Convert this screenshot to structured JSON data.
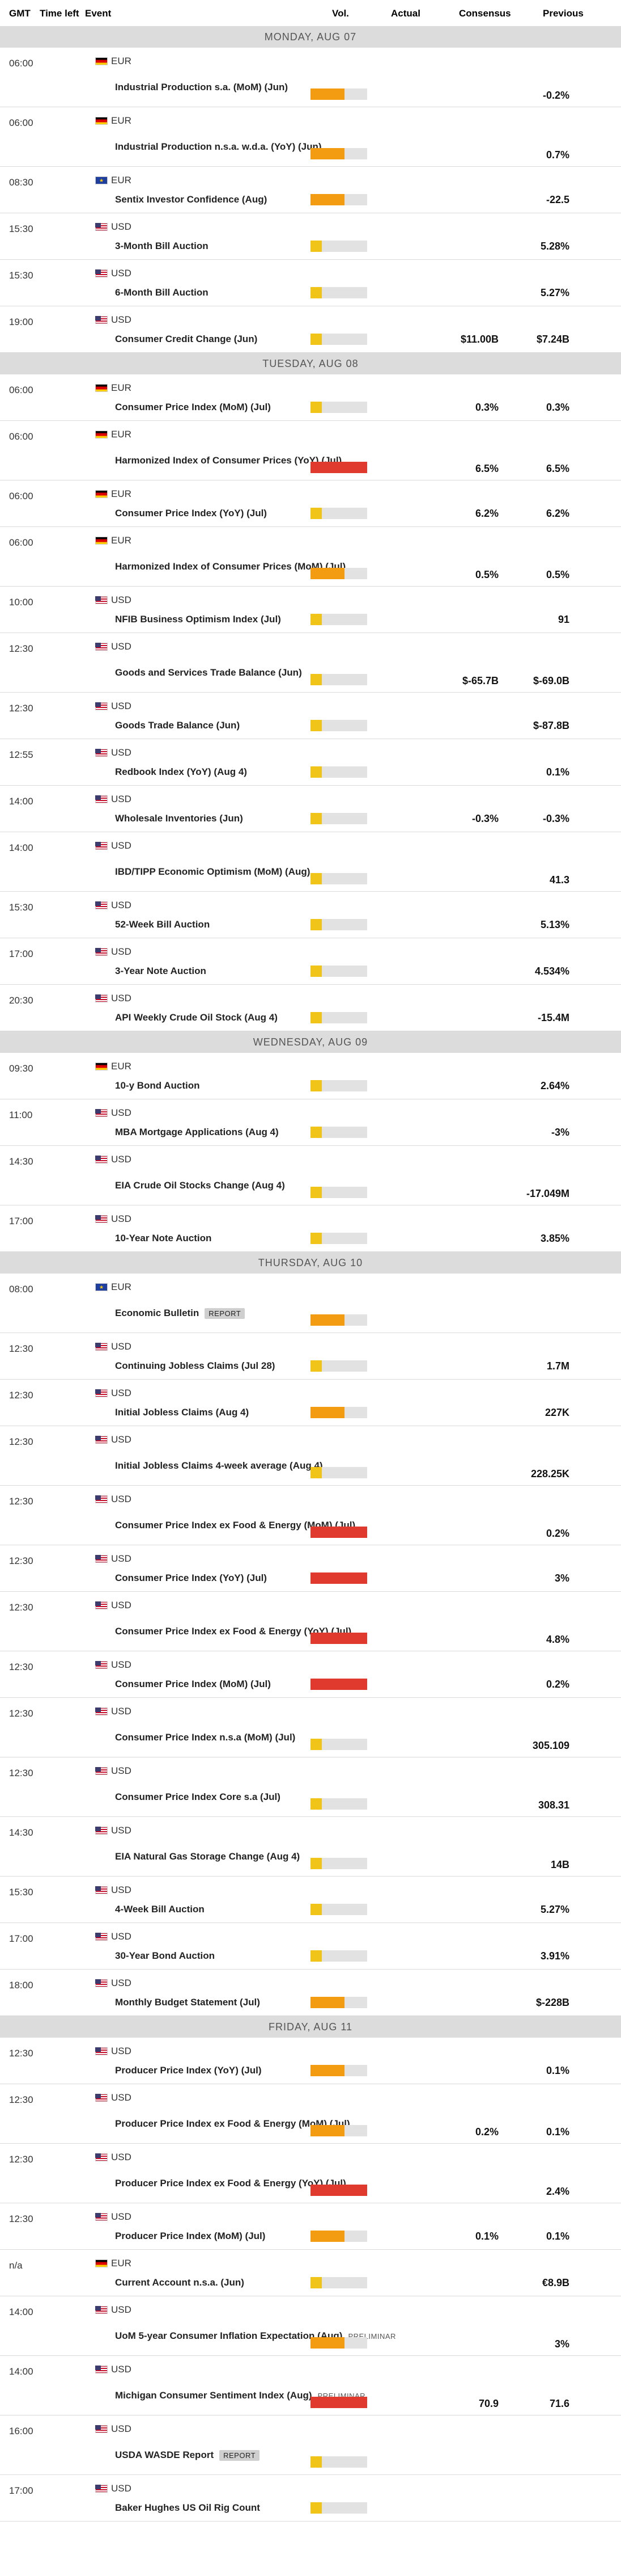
{
  "header": {
    "gmt": "GMT",
    "time_left": "Time left",
    "event": "Event",
    "vol": "Vol.",
    "actual": "Actual",
    "consensus": "Consensus",
    "previous": "Previous"
  },
  "colors": {
    "low": "#f0c419",
    "medium": "#f39c12",
    "high": "#e03a2f"
  },
  "days": [
    {
      "label": "MONDAY, AUG 07",
      "events": [
        {
          "time": "06:00",
          "currency": "EUR",
          "flag": "de",
          "name": "Industrial Production s.a. (MoM) (Jun)",
          "impact": "medium",
          "consensus": "",
          "previous": "-0.2%"
        },
        {
          "time": "06:00",
          "currency": "EUR",
          "flag": "de",
          "name": "Industrial Production n.s.a. w.d.a. (YoY) (Jun)",
          "impact": "medium",
          "consensus": "",
          "previous": "0.7%"
        },
        {
          "time": "08:30",
          "currency": "EUR",
          "flag": "eu",
          "name": "Sentix Investor Confidence (Aug)",
          "impact": "medium",
          "consensus": "",
          "previous": "-22.5"
        },
        {
          "time": "15:30",
          "currency": "USD",
          "flag": "us",
          "name": "3-Month Bill Auction",
          "impact": "low",
          "consensus": "",
          "previous": "5.28%"
        },
        {
          "time": "15:30",
          "currency": "USD",
          "flag": "us",
          "name": "6-Month Bill Auction",
          "impact": "low",
          "consensus": "",
          "previous": "5.27%"
        },
        {
          "time": "19:00",
          "currency": "USD",
          "flag": "us",
          "name": "Consumer Credit Change (Jun)",
          "impact": "low",
          "consensus": "$11.00B",
          "previous": "$7.24B"
        }
      ]
    },
    {
      "label": "TUESDAY, AUG 08",
      "events": [
        {
          "time": "06:00",
          "currency": "EUR",
          "flag": "de",
          "name": "Consumer Price Index (MoM) (Jul)",
          "impact": "low",
          "consensus": "0.3%",
          "previous": "0.3%"
        },
        {
          "time": "06:00",
          "currency": "EUR",
          "flag": "de",
          "name": "Harmonized Index of Consumer Prices (YoY) (Jul)",
          "impact": "high",
          "consensus": "6.5%",
          "previous": "6.5%"
        },
        {
          "time": "06:00",
          "currency": "EUR",
          "flag": "de",
          "name": "Consumer Price Index (YoY) (Jul)",
          "impact": "low",
          "consensus": "6.2%",
          "previous": "6.2%"
        },
        {
          "time": "06:00",
          "currency": "EUR",
          "flag": "de",
          "name": "Harmonized Index of Consumer Prices (MoM) (Jul)",
          "impact": "medium",
          "consensus": "0.5%",
          "previous": "0.5%"
        },
        {
          "time": "10:00",
          "currency": "USD",
          "flag": "us",
          "name": "NFIB Business Optimism Index (Jul)",
          "impact": "low",
          "consensus": "",
          "previous": "91"
        },
        {
          "time": "12:30",
          "currency": "USD",
          "flag": "us",
          "name": "Goods and Services Trade Balance (Jun)",
          "impact": "low",
          "consensus": "$-65.7B",
          "previous": "$-69.0B"
        },
        {
          "time": "12:30",
          "currency": "USD",
          "flag": "us",
          "name": "Goods Trade Balance (Jun)",
          "impact": "low",
          "consensus": "",
          "previous": "$-87.8B"
        },
        {
          "time": "12:55",
          "currency": "USD",
          "flag": "us",
          "name": "Redbook Index (YoY) (Aug 4)",
          "impact": "low",
          "consensus": "",
          "previous": "0.1%"
        },
        {
          "time": "14:00",
          "currency": "USD",
          "flag": "us",
          "name": "Wholesale Inventories (Jun)",
          "impact": "low",
          "consensus": "-0.3%",
          "previous": "-0.3%"
        },
        {
          "time": "14:00",
          "currency": "USD",
          "flag": "us",
          "name": "IBD/TIPP Economic Optimism (MoM) (Aug)",
          "impact": "low",
          "consensus": "",
          "previous": "41.3"
        },
        {
          "time": "15:30",
          "currency": "USD",
          "flag": "us",
          "name": "52-Week Bill Auction",
          "impact": "low",
          "consensus": "",
          "previous": "5.13%"
        },
        {
          "time": "17:00",
          "currency": "USD",
          "flag": "us",
          "name": "3-Year Note Auction",
          "impact": "low",
          "consensus": "",
          "previous": "4.534%"
        },
        {
          "time": "20:30",
          "currency": "USD",
          "flag": "us",
          "name": "API Weekly Crude Oil Stock (Aug 4)",
          "impact": "low",
          "consensus": "",
          "previous": "-15.4M"
        }
      ]
    },
    {
      "label": "WEDNESDAY, AUG 09",
      "events": [
        {
          "time": "09:30",
          "currency": "EUR",
          "flag": "de",
          "name": "10-y Bond Auction",
          "impact": "low",
          "consensus": "",
          "previous": "2.64%"
        },
        {
          "time": "11:00",
          "currency": "USD",
          "flag": "us",
          "name": "MBA Mortgage Applications (Aug 4)",
          "impact": "low",
          "consensus": "",
          "previous": "-3%"
        },
        {
          "time": "14:30",
          "currency": "USD",
          "flag": "us",
          "name": "EIA Crude Oil Stocks Change (Aug 4)",
          "impact": "low",
          "consensus": "",
          "previous": "-17.049M"
        },
        {
          "time": "17:00",
          "currency": "USD",
          "flag": "us",
          "name": "10-Year Note Auction",
          "impact": "low",
          "consensus": "",
          "previous": "3.85%"
        }
      ]
    },
    {
      "label": "THURSDAY, AUG 10",
      "events": [
        {
          "time": "08:00",
          "currency": "EUR",
          "flag": "eu",
          "name": "Economic Bulletin",
          "tag": "REPORT",
          "impact": "medium",
          "consensus": "",
          "previous": ""
        },
        {
          "time": "12:30",
          "currency": "USD",
          "flag": "us",
          "name": "Continuing Jobless Claims (Jul 28)",
          "impact": "low",
          "consensus": "",
          "previous": "1.7M"
        },
        {
          "time": "12:30",
          "currency": "USD",
          "flag": "us",
          "name": "Initial Jobless Claims (Aug 4)",
          "impact": "medium",
          "consensus": "",
          "previous": "227K"
        },
        {
          "time": "12:30",
          "currency": "USD",
          "flag": "us",
          "name": "Initial Jobless Claims 4-week average (Aug 4)",
          "impact": "low",
          "consensus": "",
          "previous": "228.25K"
        },
        {
          "time": "12:30",
          "currency": "USD",
          "flag": "us",
          "name": "Consumer Price Index ex Food & Energy (MoM) (Jul)",
          "impact": "high",
          "consensus": "",
          "previous": "0.2%"
        },
        {
          "time": "12:30",
          "currency": "USD",
          "flag": "us",
          "name": "Consumer Price Index (YoY) (Jul)",
          "impact": "high",
          "consensus": "",
          "previous": "3%"
        },
        {
          "time": "12:30",
          "currency": "USD",
          "flag": "us",
          "name": "Consumer Price Index ex Food & Energy (YoY) (Jul)",
          "impact": "high",
          "consensus": "",
          "previous": "4.8%"
        },
        {
          "time": "12:30",
          "currency": "USD",
          "flag": "us",
          "name": "Consumer Price Index (MoM) (Jul)",
          "impact": "high",
          "consensus": "",
          "previous": "0.2%"
        },
        {
          "time": "12:30",
          "currency": "USD",
          "flag": "us",
          "name": "Consumer Price Index n.s.a (MoM) (Jul)",
          "impact": "low",
          "consensus": "",
          "previous": "305.109"
        },
        {
          "time": "12:30",
          "currency": "USD",
          "flag": "us",
          "name": "Consumer Price Index Core s.a (Jul)",
          "impact": "low",
          "consensus": "",
          "previous": "308.31"
        },
        {
          "time": "14:30",
          "currency": "USD",
          "flag": "us",
          "name": "EIA Natural Gas Storage Change (Aug 4)",
          "impact": "low",
          "consensus": "",
          "previous": "14B"
        },
        {
          "time": "15:30",
          "currency": "USD",
          "flag": "us",
          "name": "4-Week Bill Auction",
          "impact": "low",
          "consensus": "",
          "previous": "5.27%"
        },
        {
          "time": "17:00",
          "currency": "USD",
          "flag": "us",
          "name": "30-Year Bond Auction",
          "impact": "low",
          "consensus": "",
          "previous": "3.91%"
        },
        {
          "time": "18:00",
          "currency": "USD",
          "flag": "us",
          "name": "Monthly Budget Statement (Jul)",
          "impact": "medium",
          "consensus": "",
          "previous": "$-228B"
        }
      ]
    },
    {
      "label": "FRIDAY, AUG 11",
      "events": [
        {
          "time": "12:30",
          "currency": "USD",
          "flag": "us",
          "name": "Producer Price Index (YoY) (Jul)",
          "impact": "medium",
          "consensus": "",
          "previous": "0.1%"
        },
        {
          "time": "12:30",
          "currency": "USD",
          "flag": "us",
          "name": "Producer Price Index ex Food & Energy (MoM) (Jul)",
          "impact": "medium",
          "consensus": "0.2%",
          "previous": "0.1%"
        },
        {
          "time": "12:30",
          "currency": "USD",
          "flag": "us",
          "name": "Producer Price Index ex Food & Energy (YoY) (Jul)",
          "impact": "high",
          "consensus": "",
          "previous": "2.4%"
        },
        {
          "time": "12:30",
          "currency": "USD",
          "flag": "us",
          "name": "Producer Price Index (MoM) (Jul)",
          "impact": "medium",
          "consensus": "0.1%",
          "previous": "0.1%"
        },
        {
          "time": "n/a",
          "currency": "EUR",
          "flag": "de",
          "name": "Current Account n.s.a. (Jun)",
          "impact": "low",
          "consensus": "",
          "previous": "€8.9B"
        },
        {
          "time": "14:00",
          "currency": "USD",
          "flag": "us",
          "name": "UoM 5-year Consumer Inflation Expectation (Aug)",
          "tag": "PRELIMINAR",
          "impact": "medium",
          "consensus": "",
          "previous": "3%"
        },
        {
          "time": "14:00",
          "currency": "USD",
          "flag": "us",
          "name": "Michigan Consumer Sentiment Index (Aug)",
          "tag": "PRELIMINAR",
          "impact": "high",
          "consensus": "70.9",
          "previous": "71.6"
        },
        {
          "time": "16:00",
          "currency": "USD",
          "flag": "us",
          "name": "USDA WASDE Report",
          "tag": "REPORT",
          "impact": "low",
          "consensus": "",
          "previous": ""
        },
        {
          "time": "17:00",
          "currency": "USD",
          "flag": "us",
          "name": "Baker Hughes US Oil Rig Count",
          "impact": "low",
          "consensus": "",
          "previous": ""
        }
      ]
    }
  ]
}
